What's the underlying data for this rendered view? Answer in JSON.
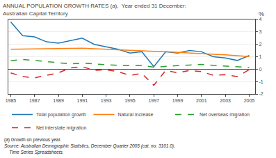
{
  "chart_data": {
    "type": "line",
    "title": "ANNUAL POPULATION GROWTH RATES (a),  Year ended 31 December:",
    "subtitle": "Australian Capital Territory",
    "ylabel": "%",
    "annotations": [
      "(a) Growth on previous year.",
      "Source: Australian Demographic Statistics, December Quarter 2005 (cat. no. 3101.0),",
      "    Time Series Spreadsheets."
    ],
    "x": [
      1985,
      1986,
      1987,
      1988,
      1989,
      1990,
      1991,
      1992,
      1993,
      1994,
      1995,
      1996,
      1997,
      1998,
      1999,
      2000,
      2001,
      2002,
      2003,
      2004,
      2005
    ],
    "series": [
      {
        "name": "Total population growth",
        "line_style": "solid",
        "values": [
          3.8,
          2.7,
          2.6,
          2.2,
          2.1,
          2.3,
          2.5,
          2.0,
          1.8,
          1.6,
          1.3,
          1.4,
          0.2,
          1.4,
          1.3,
          1.5,
          1.4,
          1.0,
          0.9,
          0.7,
          1.1
        ]
      },
      {
        "name": "Natural increase",
        "line_style": "solid",
        "values": [
          1.6,
          1.62,
          1.63,
          1.64,
          1.64,
          1.67,
          1.68,
          1.65,
          1.6,
          1.56,
          1.52,
          1.48,
          1.44,
          1.4,
          1.36,
          1.3,
          1.25,
          1.2,
          1.15,
          1.08,
          1.02
        ]
      },
      {
        "name": "Net overseas migration",
        "line_style": "dashed",
        "values": [
          0.68,
          0.78,
          0.7,
          0.6,
          0.5,
          0.42,
          0.48,
          0.42,
          0.32,
          0.3,
          0.28,
          0.3,
          0.16,
          0.2,
          0.28,
          0.33,
          0.38,
          0.3,
          0.24,
          0.2,
          0.14
        ]
      },
      {
        "name": "Net interstate migration",
        "line_style": "dashed",
        "values": [
          -0.3,
          -0.6,
          -0.7,
          -0.5,
          -0.3,
          0.1,
          0.2,
          -0.1,
          -0.05,
          -0.2,
          -0.5,
          -0.35,
          -1.3,
          -0.1,
          -0.3,
          -0.1,
          -0.2,
          -0.5,
          -0.45,
          -0.6,
          -0.05
        ]
      }
    ],
    "xlim": [
      1984.8,
      2005.5
    ],
    "xticks": [
      1985,
      1987,
      1989,
      1991,
      1993,
      1995,
      1997,
      1999,
      2001,
      2003,
      2005
    ],
    "ylim": [
      -2,
      4
    ],
    "yticks": [
      -2,
      -1,
      0,
      1,
      2,
      3,
      4
    ],
    "grid": true,
    "legend": "bottom"
  }
}
